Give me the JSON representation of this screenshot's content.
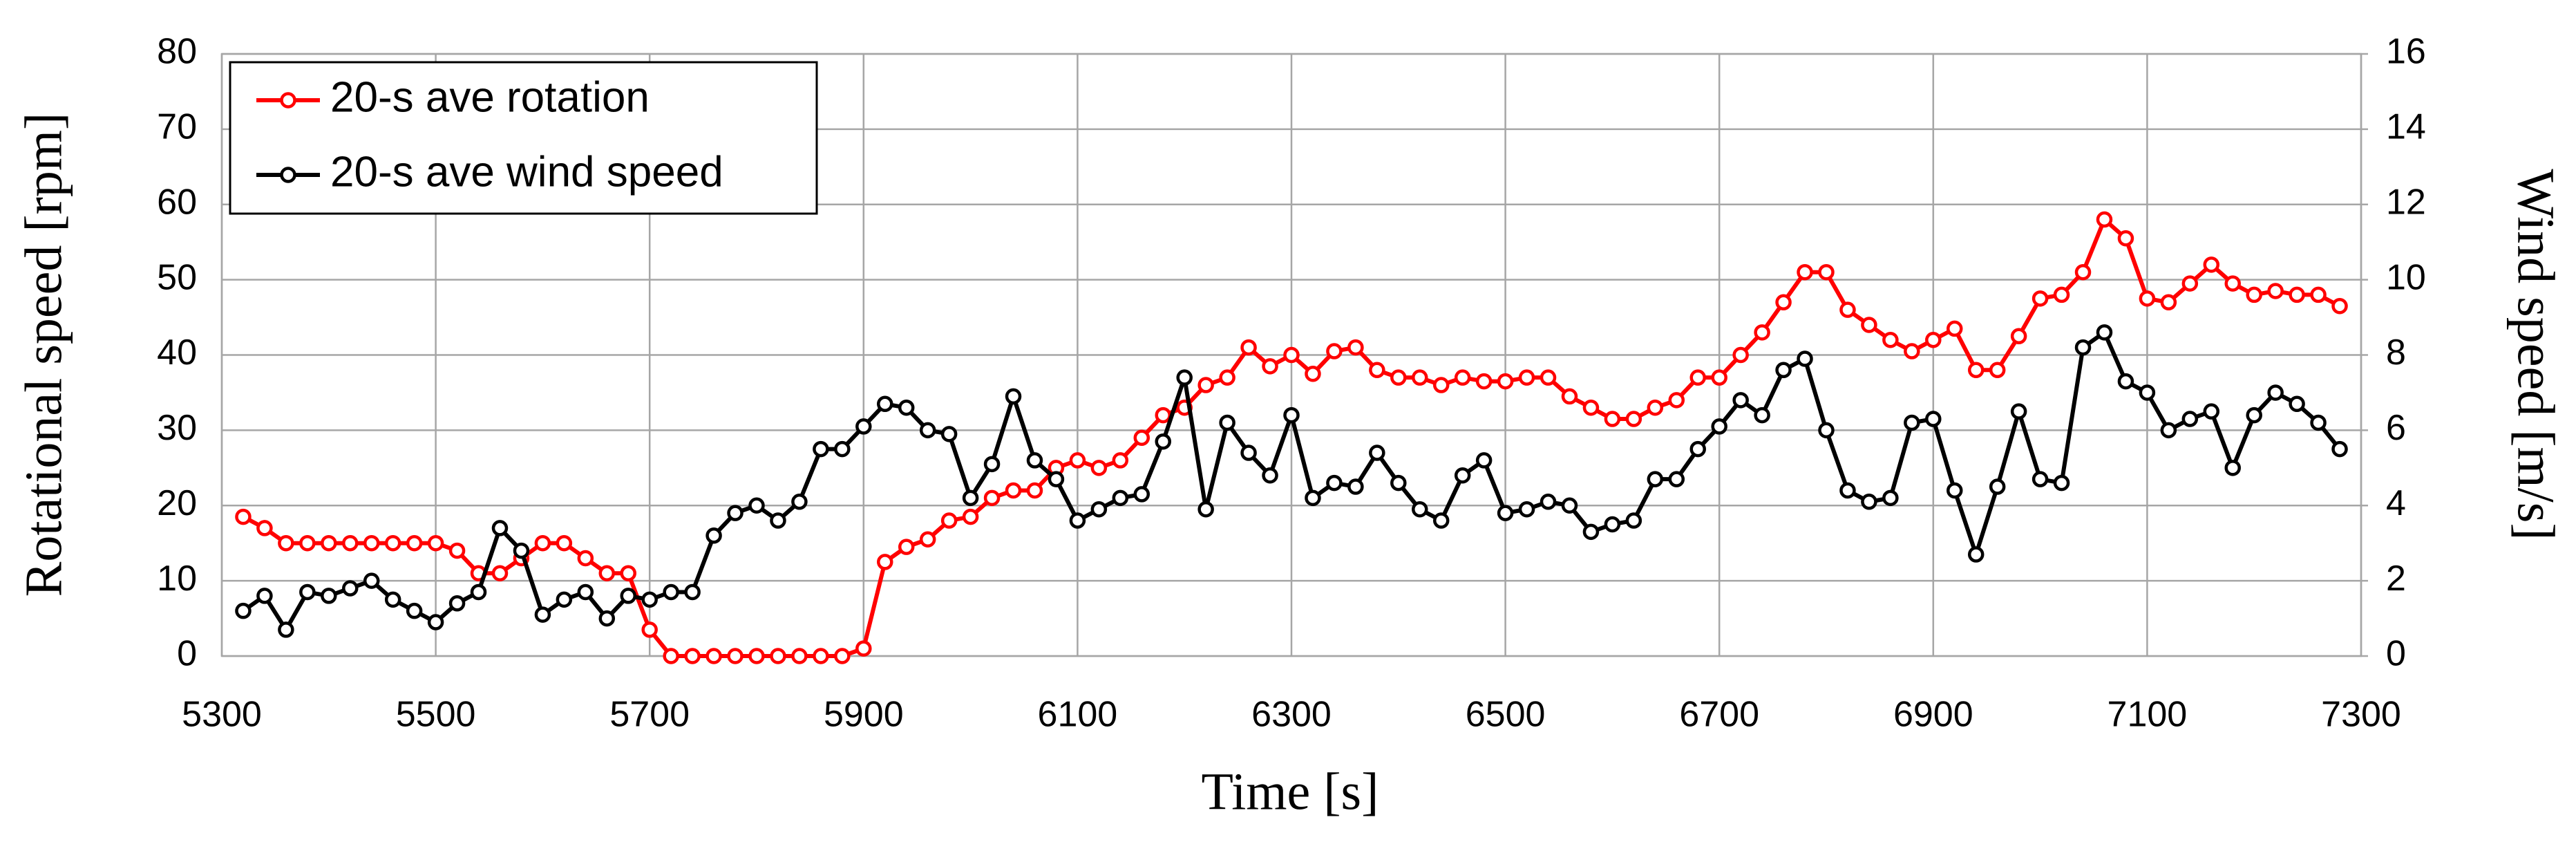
{
  "chart_data": {
    "type": "line",
    "x_label": "Time  [s]",
    "y_label": "Rotational speed  [rpm]",
    "y2_label": "Wind speed  [m/s]",
    "x": [
      5320,
      5340,
      5360,
      5380,
      5400,
      5420,
      5440,
      5460,
      5480,
      5500,
      5520,
      5540,
      5560,
      5580,
      5600,
      5620,
      5640,
      5660,
      5680,
      5700,
      5720,
      5740,
      5760,
      5780,
      5800,
      5820,
      5840,
      5860,
      5880,
      5900,
      5920,
      5940,
      5960,
      5980,
      6000,
      6020,
      6040,
      6060,
      6080,
      6100,
      6120,
      6140,
      6160,
      6180,
      6200,
      6220,
      6240,
      6260,
      6280,
      6300,
      6320,
      6340,
      6360,
      6380,
      6400,
      6420,
      6440,
      6460,
      6480,
      6500,
      6520,
      6540,
      6560,
      6580,
      6600,
      6620,
      6640,
      6660,
      6680,
      6700,
      6720,
      6740,
      6760,
      6780,
      6800,
      6820,
      6840,
      6860,
      6880,
      6900,
      6920,
      6940,
      6960,
      6980,
      7000,
      7020,
      7040,
      7060,
      7080,
      7100,
      7120,
      7140,
      7160,
      7180,
      7200,
      7220,
      7240,
      7260,
      7280
    ],
    "series": [
      {
        "name": "20-s ave rotation",
        "color": "#ff0000",
        "values": [
          18.5,
          17,
          15,
          15,
          15,
          15,
          15,
          15,
          15,
          15,
          14,
          11,
          11,
          13,
          15,
          15,
          13,
          11,
          11,
          3.5,
          0,
          0,
          0,
          0,
          0,
          0,
          0,
          0,
          0,
          1,
          12.5,
          14.5,
          15.5,
          18,
          18.5,
          21,
          22,
          22,
          25,
          26,
          25,
          26,
          29,
          32,
          33,
          36,
          37,
          41,
          38.5,
          40,
          37.5,
          40.5,
          41,
          38,
          37,
          37,
          36,
          37,
          36.5,
          36.5,
          37,
          37,
          34.5,
          33,
          31.5,
          31.5,
          33,
          34,
          37,
          37,
          40,
          43,
          47,
          51,
          51,
          46,
          44,
          42,
          40.5,
          42,
          43.5,
          38,
          38,
          42.5,
          47.5,
          48,
          51,
          58,
          55.5,
          47.5,
          47,
          49.5,
          52,
          49.5,
          48,
          48.5,
          48,
          48,
          46.5
        ]
      },
      {
        "name": "20-s ave wind speed",
        "color": "#000000",
        "axis": "y2",
        "values": [
          1.2,
          1.6,
          0.7,
          1.7,
          1.6,
          1.8,
          2.0,
          1.5,
          1.2,
          0.9,
          1.4,
          1.7,
          3.4,
          2.8,
          1.1,
          1.5,
          1.7,
          1.0,
          1.6,
          1.5,
          1.7,
          1.7,
          3.2,
          3.8,
          4.0,
          3.6,
          4.1,
          5.5,
          5.5,
          6.1,
          6.7,
          6.6,
          6.0,
          5.9,
          4.2,
          5.1,
          6.9,
          5.2,
          4.7,
          3.6,
          3.9,
          4.2,
          4.3,
          5.7,
          7.4,
          3.9,
          6.2,
          5.4,
          4.8,
          6.4,
          4.2,
          4.6,
          4.5,
          5.4,
          4.6,
          3.9,
          3.6,
          4.8,
          5.2,
          3.8,
          3.9,
          4.1,
          4.0,
          3.3,
          3.5,
          3.6,
          4.7,
          4.7,
          5.5,
          6.1,
          6.8,
          6.4,
          7.6,
          7.9,
          6.0,
          4.4,
          4.1,
          4.2,
          6.2,
          6.3,
          4.4,
          2.7,
          4.5,
          6.5,
          4.7,
          4.6,
          8.2,
          8.6,
          7.3,
          7.0,
          6.0,
          6.3,
          6.5,
          5.0,
          6.4,
          7.0,
          6.7,
          6.2,
          5.5
        ]
      }
    ],
    "xlim": [
      5300,
      7300
    ],
    "xticks": [
      5300,
      5500,
      5700,
      5900,
      6100,
      6300,
      6500,
      6700,
      6900,
      7100,
      7300
    ],
    "ylim": [
      0,
      80
    ],
    "yticks": [
      0,
      10,
      20,
      30,
      40,
      50,
      60,
      70,
      80
    ],
    "y2lim": [
      0,
      16
    ],
    "y2ticks": [
      0,
      2,
      4,
      6,
      8,
      10,
      12,
      14,
      16
    ],
    "grid": true,
    "legend": "upper left"
  }
}
